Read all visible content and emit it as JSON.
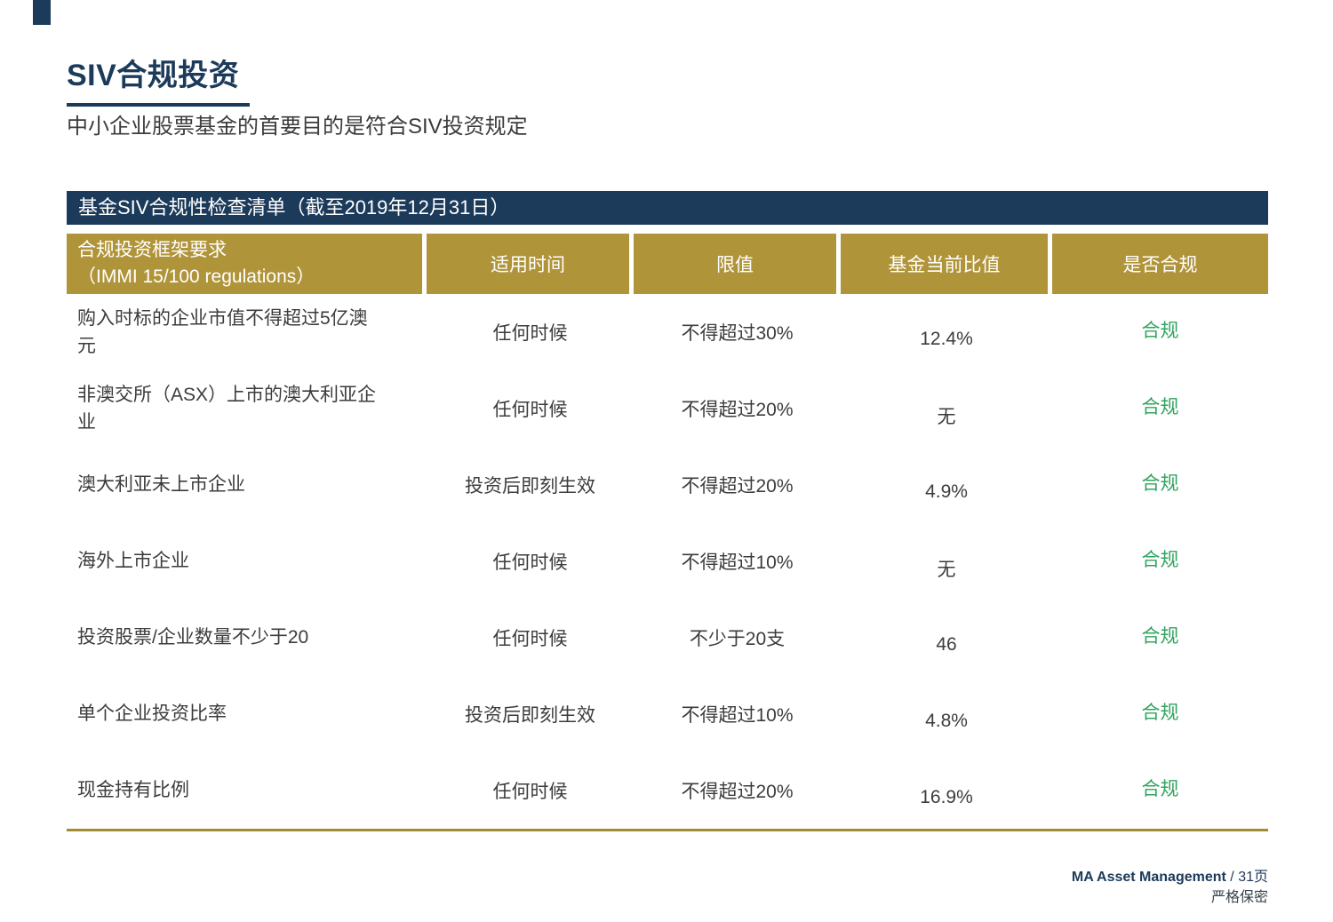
{
  "page": {
    "title": "SIV合规投资",
    "subtitle": "中小企业股票基金的首要目的是符合SIV投资规定"
  },
  "table": {
    "banner": "基金SIV合规性检查清单（截至2019年12月31日）",
    "header": {
      "req_line1": "合规投资框架要求",
      "req_line2": "（IMMI 15/100 regulations）",
      "time": "适用时间",
      "limit": "限值",
      "current": "基金当前比值",
      "status": "是否合规"
    },
    "rows": [
      {
        "req": "购入时标的企业市值不得超过5亿澳元",
        "time": "任何时候",
        "limit": "不得超过30%",
        "current": "12.4%",
        "status": "合规"
      },
      {
        "req": "非澳交所（ASX）上市的澳大利亚企业",
        "time": "任何时候",
        "limit": "不得超过20%",
        "current": "无",
        "status": "合规"
      },
      {
        "req": "澳大利亚未上市企业",
        "time": "投资后即刻生效",
        "limit": "不得超过20%",
        "current": "4.9%",
        "status": "合规"
      },
      {
        "req": "海外上市企业",
        "time": "任何时候",
        "limit": "不得超过10%",
        "current": "无",
        "status": "合规"
      },
      {
        "req": "投资股票/企业数量不少于20",
        "time": "任何时候",
        "limit": "不少于20支",
        "current": "46",
        "status": "合规"
      },
      {
        "req": "单个企业投资比率",
        "time": "投资后即刻生效",
        "limit": "不得超过10%",
        "current": "4.8%",
        "status": "合规"
      },
      {
        "req": "现金持有比例",
        "time": "任何时候",
        "limit": "不得超过20%",
        "current": "16.9%",
        "status": "合规"
      }
    ]
  },
  "footer": {
    "brand": "MA Asset Management",
    "page_suffix": " / 31页",
    "confidential": "严格保密"
  },
  "colors": {
    "navy": "#1C3A5A",
    "gold": "#B0943A",
    "gold_rule": "#A28C33",
    "green": "#31A45F",
    "body_text": "#3C3C3C"
  }
}
